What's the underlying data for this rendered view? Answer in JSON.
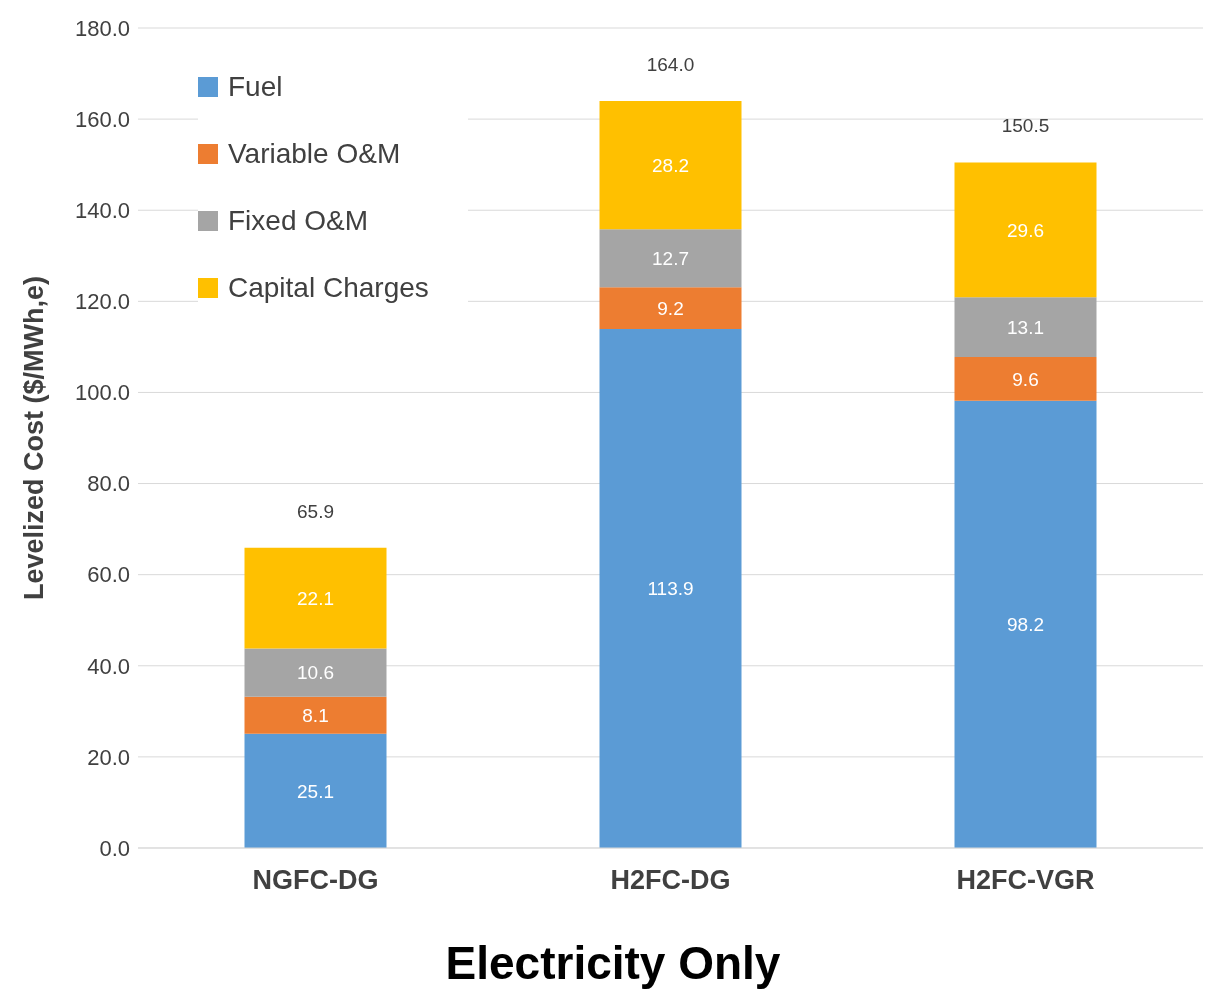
{
  "chart_data": {
    "type": "bar",
    "stacked": true,
    "xlabel": "Electricity Only",
    "ylabel": "Levelized Cost ($/MWh,e)",
    "categories": [
      "NGFC-DG",
      "H2FC-DG",
      "H2FC-VGR"
    ],
    "series": [
      {
        "name": "Fuel",
        "color": "#5b9bd5",
        "values": [
          25.1,
          113.9,
          98.2
        ]
      },
      {
        "name": "Variable O&M",
        "color": "#ed7d31",
        "values": [
          8.1,
          9.2,
          9.6
        ]
      },
      {
        "name": "Fixed O&M",
        "color": "#a5a5a5",
        "values": [
          10.6,
          12.7,
          13.1
        ]
      },
      {
        "name": "Capital Charges",
        "color": "#ffc000",
        "values": [
          22.1,
          28.2,
          29.6
        ]
      }
    ],
    "totals": [
      "65.9",
      "164.0",
      "150.5"
    ],
    "data_labels": true,
    "ylim": [
      0,
      180
    ],
    "yticks": [
      {
        "value": 0,
        "label": "0.0"
      },
      {
        "value": 20,
        "label": "20.0"
      },
      {
        "value": 40,
        "label": "40.0"
      },
      {
        "value": 60,
        "label": "60.0"
      },
      {
        "value": 80,
        "label": "80.0"
      },
      {
        "value": 100,
        "label": "100.0"
      },
      {
        "value": 120,
        "label": "120.0"
      },
      {
        "value": 140,
        "label": "140.0"
      },
      {
        "value": 160,
        "label": "160.0"
      },
      {
        "value": 180,
        "label": "180.0"
      }
    ],
    "grid": "y",
    "legend": "top left"
  }
}
